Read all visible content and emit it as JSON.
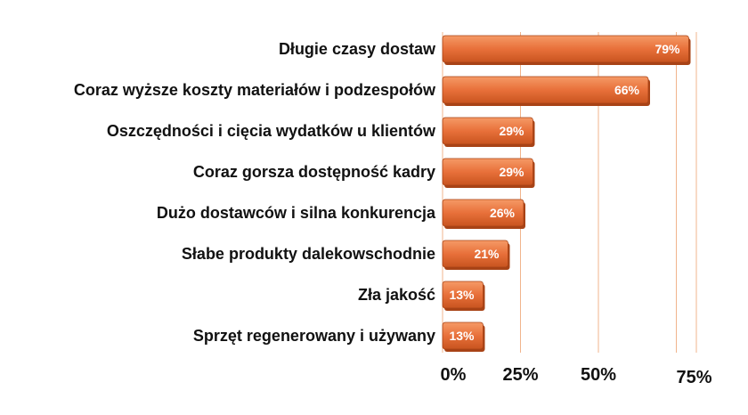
{
  "chart_data": {
    "type": "bar",
    "orientation": "horizontal",
    "categories": [
      "Długie czasy dostaw",
      "Coraz wyższe koszty materiałów i podzespołów",
      "Oszczędności i cięcia wydatków u klientów",
      "Coraz gorsza dostępność kadry",
      "Dużo dostawców i silna konkurencja",
      "Słabe produkty dalekowschodnie",
      "Zła jakość",
      "Sprzęt regenerowany i używany"
    ],
    "values": [
      79,
      66,
      29,
      29,
      26,
      21,
      13,
      13
    ],
    "value_labels": [
      "79%",
      "66%",
      "29%",
      "29%",
      "26%",
      "21%",
      "13%",
      "13%"
    ],
    "x_ticks": [
      0,
      25,
      50,
      75
    ],
    "x_tick_labels": [
      "0%",
      "25%",
      "50%",
      "75%"
    ],
    "xlim": [
      0,
      80
    ],
    "grid": "vertical",
    "legend": "none",
    "colors": {
      "bar": "#e8703a",
      "bar_dark": "#a84316",
      "gridline": "#f0b48c",
      "text": "#111111",
      "value_text": "#ffffff"
    }
  }
}
